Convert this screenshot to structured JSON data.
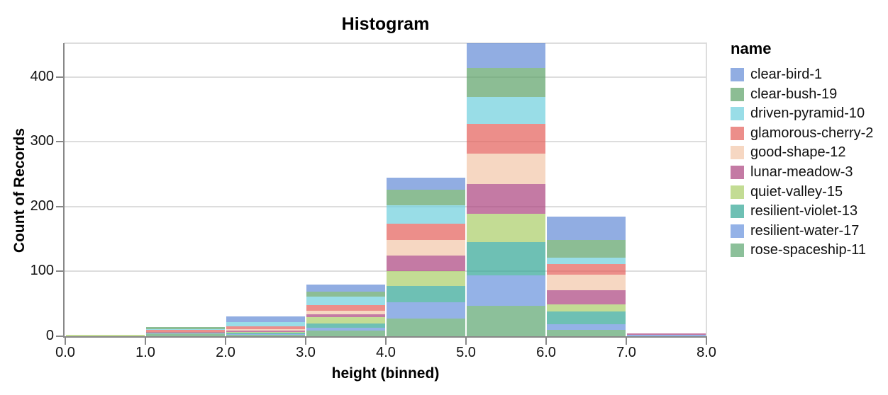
{
  "title": "Histogram",
  "x_axis": {
    "title": "height (binned)",
    "ticks": [
      "0.0",
      "1.0",
      "2.0",
      "3.0",
      "4.0",
      "5.0",
      "6.0",
      "7.0",
      "8.0"
    ]
  },
  "y_axis": {
    "title": "Count of Records",
    "ticks": [
      "0",
      "100",
      "200",
      "300",
      "400"
    ]
  },
  "legend": {
    "title": "name"
  },
  "colors": {
    "gridline": "#dddddd",
    "axis": "#888888",
    "label": "#111111",
    "title": "#000000"
  },
  "chart_data": {
    "type": "bar",
    "subtype": "stacked-histogram",
    "title": "Histogram",
    "xlabel": "height (binned)",
    "ylabel": "Count of Records",
    "bin_edges": [
      0,
      1,
      2,
      3,
      4,
      5,
      6,
      7,
      8
    ],
    "categories": [
      "0-1",
      "1-2",
      "2-3",
      "3-4",
      "4-5",
      "5-6",
      "6-7",
      "7-8"
    ],
    "ylim": [
      0,
      452
    ],
    "xlim": [
      0,
      8
    ],
    "grid": true,
    "legend_position": "right",
    "mark_opacity": 0.7,
    "stack_order_bottom_to_top": [
      "rose-spaceship-11",
      "resilient-water-17",
      "resilient-violet-13",
      "quiet-valley-15",
      "lunar-meadow-3",
      "good-shape-12",
      "glamorous-cherry-2",
      "driven-pyramid-10",
      "clear-bush-19",
      "clear-bird-1"
    ],
    "series": [
      {
        "name": "clear-bird-1",
        "color": "#638ad6",
        "values": [
          0,
          0,
          9,
          11,
          19,
          38,
          35,
          0
        ]
      },
      {
        "name": "clear-bush-19",
        "color": "#5ba166",
        "values": [
          0,
          3,
          0,
          8,
          24,
          45,
          28,
          0
        ]
      },
      {
        "name": "driven-pyramid-10",
        "color": "#6dcedd",
        "values": [
          0,
          1,
          7,
          13,
          28,
          41,
          10,
          0
        ]
      },
      {
        "name": "glamorous-cherry-2",
        "color": "#e45e58",
        "values": [
          0,
          3,
          4,
          9,
          26,
          46,
          16,
          0
        ]
      },
      {
        "name": "good-shape-12",
        "color": "#f2c6a8",
        "values": [
          0,
          0,
          2,
          5,
          24,
          47,
          24,
          0
        ]
      },
      {
        "name": "lunar-meadow-3",
        "color": "#ab427e",
        "values": [
          0,
          1,
          2,
          5,
          24,
          46,
          22,
          2
        ]
      },
      {
        "name": "quiet-valley-15",
        "color": "#a9cd66",
        "values": [
          2,
          1,
          2,
          9,
          22,
          44,
          11,
          0
        ]
      },
      {
        "name": "resilient-violet-13",
        "color": "#31a594",
        "values": [
          0,
          1,
          2,
          7,
          26,
          51,
          19,
          0
        ]
      },
      {
        "name": "resilient-water-17",
        "color": "#6692dd",
        "values": [
          0,
          1,
          1,
          4,
          25,
          47,
          9,
          2
        ]
      },
      {
        "name": "rose-spaceship-11",
        "color": "#5ba56f",
        "values": [
          0,
          3,
          2,
          9,
          27,
          47,
          10,
          0
        ]
      }
    ]
  }
}
